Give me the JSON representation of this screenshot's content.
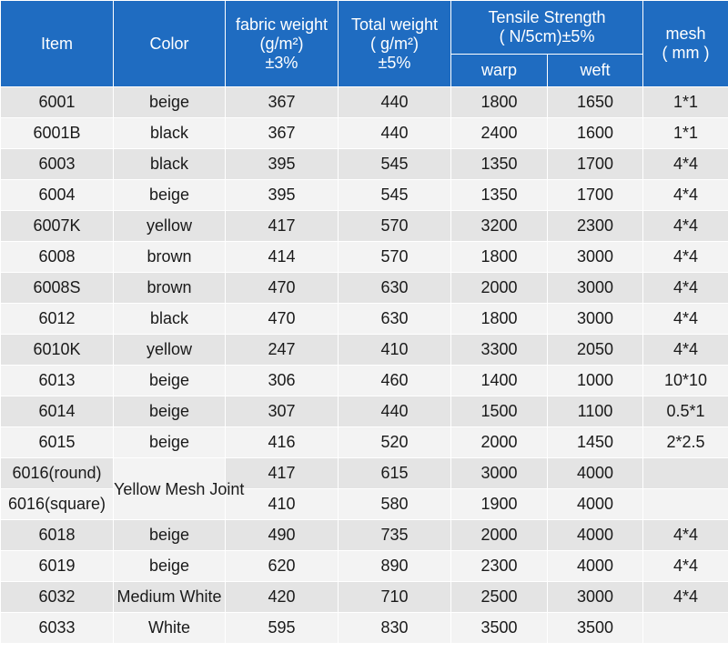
{
  "headers": {
    "item": "Item",
    "color": "Color",
    "fabric_weight": [
      "fabric weight",
      "(g/m²)",
      "±3%"
    ],
    "total_weight": [
      "Total weight",
      "( g/m²)",
      "±5%"
    ],
    "tensile": [
      "Tensile Strength",
      "( N/5cm)±5%"
    ],
    "warp": "warp",
    "weft": "weft",
    "mesh": [
      "mesh",
      "( mm )"
    ]
  },
  "rows": [
    {
      "item": "6001",
      "color": "beige",
      "fabric": "367",
      "total": "440",
      "warp": "1800",
      "weft": "1650",
      "mesh": "1*1"
    },
    {
      "item": "6001B",
      "color": "black",
      "fabric": "367",
      "total": "440",
      "warp": "2400",
      "weft": "1600",
      "mesh": "1*1"
    },
    {
      "item": "6003",
      "color": "black",
      "fabric": "395",
      "total": "545",
      "warp": "1350",
      "weft": "1700",
      "mesh": "4*4"
    },
    {
      "item": "6004",
      "color": "beige",
      "fabric": "395",
      "total": "545",
      "warp": "1350",
      "weft": "1700",
      "mesh": "4*4"
    },
    {
      "item": "6007K",
      "color": "yellow",
      "fabric": "417",
      "total": "570",
      "warp": "3200",
      "weft": "2300",
      "mesh": "4*4"
    },
    {
      "item": "6008",
      "color": "brown",
      "fabric": "414",
      "total": "570",
      "warp": "1800",
      "weft": "3000",
      "mesh": "4*4"
    },
    {
      "item": "6008S",
      "color": "brown",
      "fabric": "470",
      "total": "630",
      "warp": "2000",
      "weft": "3000",
      "mesh": "4*4"
    },
    {
      "item": "6012",
      "color": "black",
      "fabric": "470",
      "total": "630",
      "warp": "1800",
      "weft": "3000",
      "mesh": "4*4"
    },
    {
      "item": "6010K",
      "color": "yellow",
      "fabric": "247",
      "total": "410",
      "warp": "3300",
      "weft": "2050",
      "mesh": "4*4"
    },
    {
      "item": "6013",
      "color": "beige",
      "fabric": "306",
      "total": "460",
      "warp": "1400",
      "weft": "1000",
      "mesh": "10*10"
    },
    {
      "item": "6014",
      "color": "beige",
      "fabric": "307",
      "total": "440",
      "warp": "1500",
      "weft": "1100",
      "mesh": "0.5*1"
    },
    {
      "item": "6015",
      "color": "beige",
      "fabric": "416",
      "total": "520",
      "warp": "2000",
      "weft": "1450",
      "mesh": "2*2.5"
    },
    {
      "item": "6016(round)",
      "color": "Yellow Mesh Joint",
      "fabric": "417",
      "total": "615",
      "warp": "3000",
      "weft": "4000",
      "mesh": ""
    },
    {
      "item": "6016(square)",
      "color": "",
      "fabric": "410",
      "total": "580",
      "warp": "1900",
      "weft": "4000",
      "mesh": ""
    },
    {
      "item": "6018",
      "color": "beige",
      "fabric": "490",
      "total": "735",
      "warp": "2000",
      "weft": "4000",
      "mesh": "4*4"
    },
    {
      "item": "6019",
      "color": "beige",
      "fabric": "620",
      "total": "890",
      "warp": "2300",
      "weft": "4000",
      "mesh": "4*4"
    },
    {
      "item": "6032",
      "color": "Medium White",
      "fabric": "420",
      "total": "710",
      "warp": "2500",
      "weft": "3000",
      "mesh": "4*4"
    },
    {
      "item": "6033",
      "color": "White",
      "fabric": "595",
      "total": "830",
      "warp": "3500",
      "weft": "3500",
      "mesh": ""
    }
  ]
}
